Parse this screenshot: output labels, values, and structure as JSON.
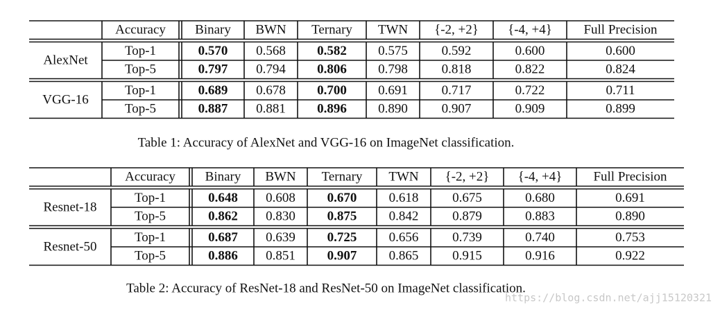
{
  "tables": [
    {
      "header": [
        "Accuracy",
        "Binary",
        "BWN",
        "Ternary",
        "TWN",
        "{-2, +2}",
        "{-4, +4}",
        "Full Precision"
      ],
      "groups": [
        {
          "model": "AlexNet",
          "rows": [
            [
              "Top-1",
              "0.570",
              "0.568",
              "0.582",
              "0.575",
              "0.592",
              "0.600",
              "0.600"
            ],
            [
              "Top-5",
              "0.797",
              "0.794",
              "0.806",
              "0.798",
              "0.818",
              "0.822",
              "0.824"
            ]
          ]
        },
        {
          "model": "VGG-16",
          "rows": [
            [
              "Top-1",
              "0.689",
              "0.678",
              "0.700",
              "0.691",
              "0.717",
              "0.722",
              "0.711"
            ],
            [
              "Top-5",
              "0.887",
              "0.881",
              "0.896",
              "0.890",
              "0.907",
              "0.909",
              "0.899"
            ]
          ]
        }
      ],
      "caption": "Table 1: Accuracy of AlexNet and VGG-16 on ImageNet classification."
    },
    {
      "header": [
        "Accuracy",
        "Binary",
        "BWN",
        "Ternary",
        "TWN",
        "{-2, +2}",
        "{-4, +4}",
        "Full Precision"
      ],
      "groups": [
        {
          "model": "Resnet-18",
          "rows": [
            [
              "Top-1",
              "0.648",
              "0.608",
              "0.670",
              "0.618",
              "0.675",
              "0.680",
              "0.691"
            ],
            [
              "Top-5",
              "0.862",
              "0.830",
              "0.875",
              "0.842",
              "0.879",
              "0.883",
              "0.890"
            ]
          ]
        },
        {
          "model": "Resnet-50",
          "rows": [
            [
              "Top-1",
              "0.687",
              "0.639",
              "0.725",
              "0.656",
              "0.739",
              "0.740",
              "0.753"
            ],
            [
              "Top-5",
              "0.886",
              "0.851",
              "0.907",
              "0.865",
              "0.915",
              "0.916",
              "0.922"
            ]
          ]
        }
      ],
      "caption": "Table 2: Accuracy of ResNet-18 and ResNet-50 on ImageNet classification."
    }
  ],
  "watermark": "https://blog.csdn.net/ajj15120321"
}
